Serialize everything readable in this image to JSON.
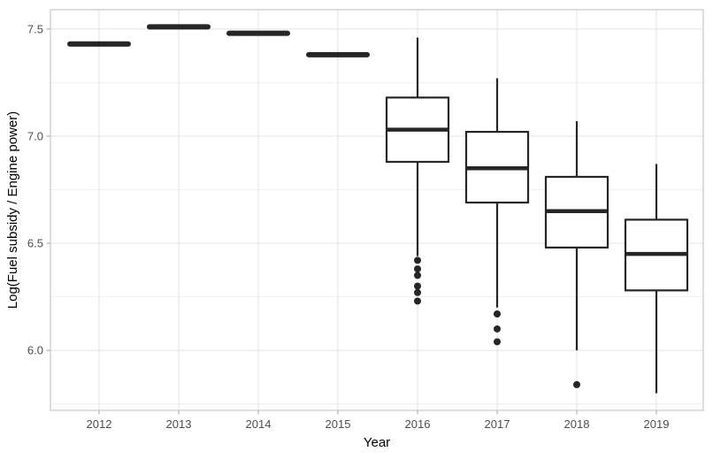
{
  "figure": {
    "background": "#ffffff"
  },
  "chart_data": {
    "type": "boxplot",
    "title": "",
    "xlabel": "Year",
    "ylabel": "Log(Fuel subsidy / Engine power)",
    "categories": [
      "2012",
      "2013",
      "2014",
      "2015",
      "2016",
      "2017",
      "2018",
      "2019"
    ],
    "ylim": [
      5.72,
      7.59
    ],
    "y_major_ticks": [
      7.5,
      7.0,
      6.5,
      6.0
    ],
    "y_major_labels": [
      "7.5",
      "7.0",
      "6.5",
      "6.0"
    ],
    "y_minor_ticks": [
      7.25,
      6.75,
      6.25,
      5.75
    ],
    "grid": "horizontal major+minor, vertical major at each category",
    "legend": "none",
    "boxes": [
      {
        "year": "2012",
        "whisker_low": 7.43,
        "q1": 7.43,
        "median": 7.43,
        "q3": 7.43,
        "whisker_high": 7.43,
        "outliers": []
      },
      {
        "year": "2013",
        "whisker_low": 7.51,
        "q1": 7.51,
        "median": 7.51,
        "q3": 7.51,
        "whisker_high": 7.51,
        "outliers": []
      },
      {
        "year": "2014",
        "whisker_low": 7.48,
        "q1": 7.48,
        "median": 7.48,
        "q3": 7.48,
        "whisker_high": 7.48,
        "outliers": []
      },
      {
        "year": "2015",
        "whisker_low": 7.38,
        "q1": 7.38,
        "median": 7.38,
        "q3": 7.38,
        "whisker_high": 7.38,
        "outliers": []
      },
      {
        "year": "2016",
        "whisker_low": 6.44,
        "q1": 6.88,
        "median": 7.03,
        "q3": 7.18,
        "whisker_high": 7.46,
        "outliers": [
          6.42,
          6.38,
          6.35,
          6.3,
          6.27,
          6.23
        ]
      },
      {
        "year": "2017",
        "whisker_low": 6.2,
        "q1": 6.69,
        "median": 6.85,
        "q3": 7.02,
        "whisker_high": 7.27,
        "outliers": [
          6.17,
          6.1,
          6.04
        ]
      },
      {
        "year": "2018",
        "whisker_low": 6.0,
        "q1": 6.48,
        "median": 6.65,
        "q3": 6.81,
        "whisker_high": 7.07,
        "outliers": [
          5.84
        ]
      },
      {
        "year": "2019",
        "whisker_low": 5.8,
        "q1": 6.28,
        "median": 6.45,
        "q3": 6.61,
        "whisker_high": 6.87,
        "outliers": []
      }
    ],
    "colors": {
      "box_stroke": "#262626",
      "box_fill": "#ffffff",
      "grid_major": "#e3e7e9",
      "grid_minor": "#edf0f1",
      "panel_border": "#c7ccd0",
      "tick_mark": "#b4b9bc",
      "tick_label": "#4d4d4d",
      "axis_title": "#000000"
    }
  }
}
